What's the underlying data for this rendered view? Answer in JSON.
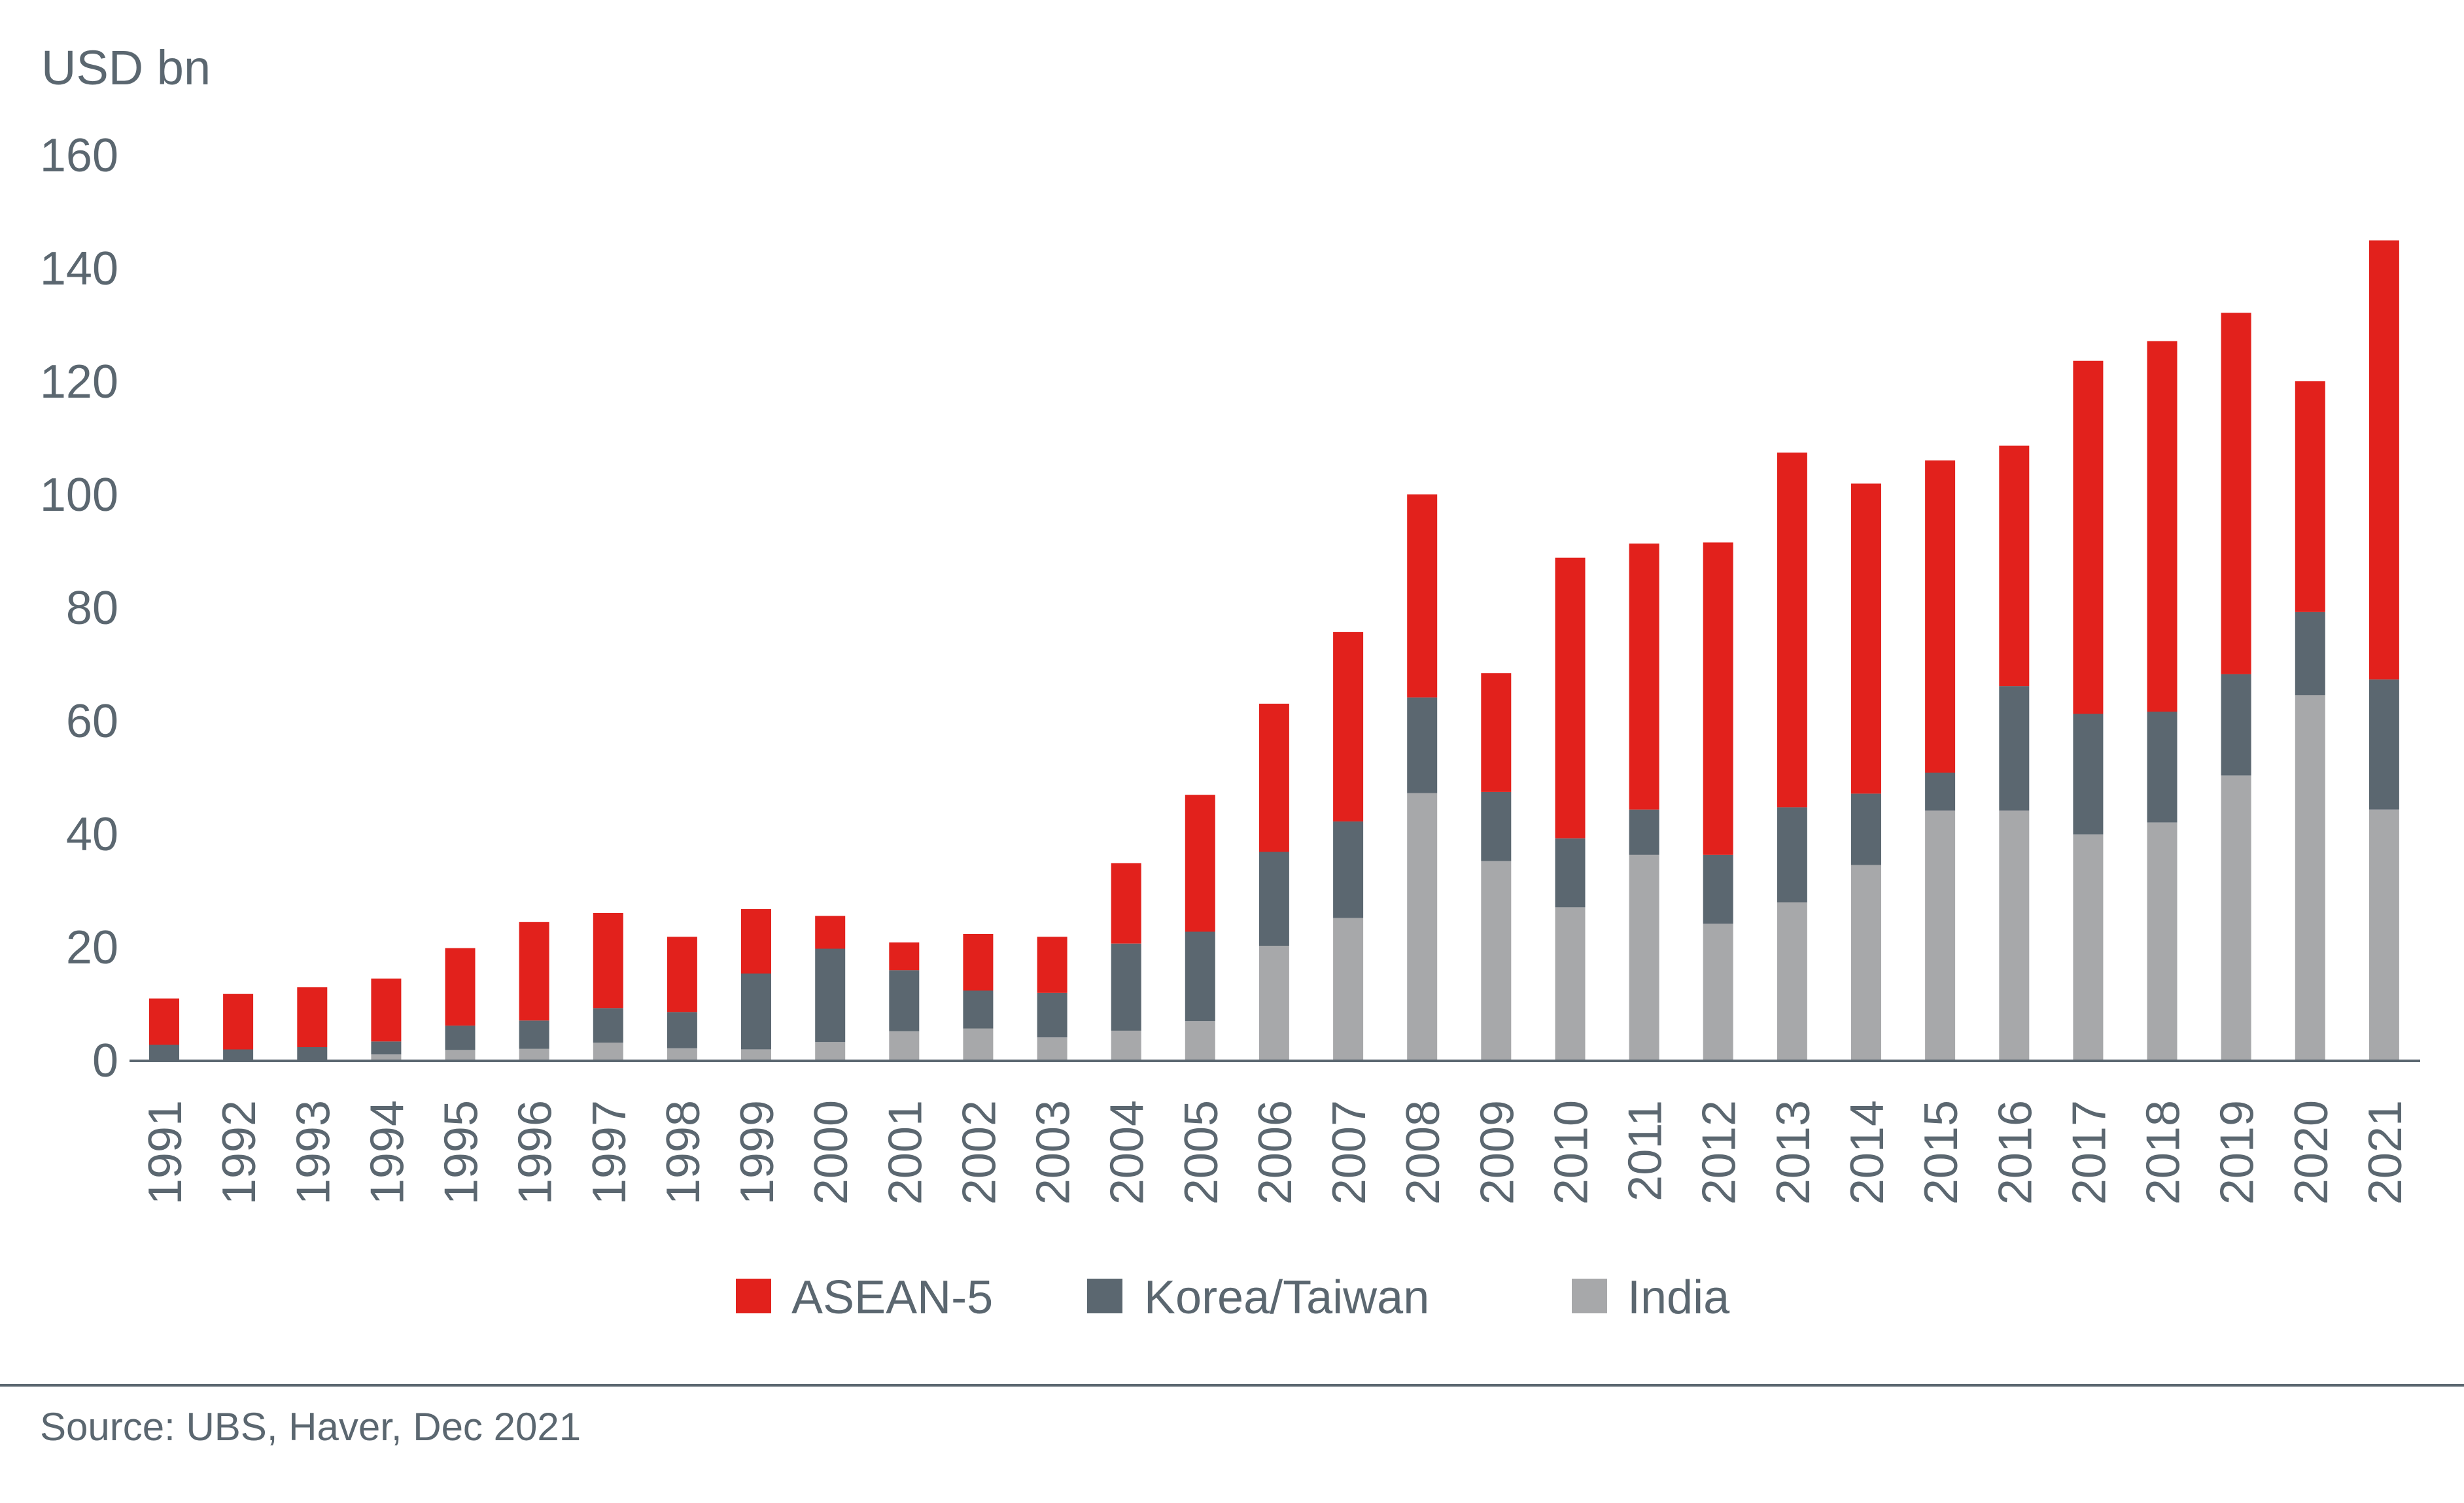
{
  "chart_data": {
    "type": "bar",
    "stacked": true,
    "title": "",
    "ylabel": "USD bn",
    "xlabel": "",
    "ylim": [
      0,
      160
    ],
    "yticks": [
      0,
      20,
      40,
      60,
      80,
      100,
      120,
      140,
      160
    ],
    "grid": false,
    "legend_position": "bottom",
    "categories": [
      "1991",
      "1992",
      "1993",
      "1994",
      "1995",
      "1996",
      "1997",
      "1998",
      "1999",
      "2000",
      "2001",
      "2002",
      "2003",
      "2004",
      "2005",
      "2006",
      "2007",
      "2008",
      "2009",
      "2010",
      "2011",
      "2012",
      "2013",
      "2014",
      "2015",
      "2016",
      "2017",
      "2018",
      "2019",
      "2020",
      "2021"
    ],
    "series": [
      {
        "name": "India",
        "color": "#a7a8aa",
        "values": [
          0,
          0,
          0,
          0.9,
          1.7,
          1.9,
          3.0,
          2.0,
          1.8,
          3.1,
          5.0,
          5.5,
          3.9,
          5.1,
          6.8,
          20.1,
          25.0,
          47.1,
          35.1,
          26.9,
          36.2,
          24.0,
          27.8,
          34.4,
          44.0,
          44.0,
          39.8,
          41.9,
          50.2,
          64.4,
          44.2
        ]
      },
      {
        "name": "Korea/Taiwan",
        "color": "#5b6770",
        "values": [
          2.6,
          1.8,
          2.2,
          2.3,
          4.3,
          5.0,
          6.1,
          6.4,
          13.4,
          16.5,
          10.8,
          6.7,
          7.9,
          15.4,
          15.8,
          16.6,
          17.1,
          16.9,
          12.2,
          12.2,
          8.0,
          12.2,
          16.8,
          12.6,
          6.7,
          22.0,
          21.3,
          19.6,
          17.9,
          14.7,
          23.0
        ]
      },
      {
        "name": "ASEAN-5",
        "color": "#e2211c",
        "values": [
          8.2,
          9.8,
          10.6,
          11.1,
          13.7,
          17.4,
          16.8,
          13.3,
          11.4,
          5.8,
          4.9,
          10.0,
          9.9,
          14.2,
          24.2,
          26.2,
          33.5,
          35.9,
          21.0,
          49.6,
          47.0,
          55.2,
          62.7,
          54.8,
          55.2,
          42.5,
          62.4,
          65.5,
          63.9,
          40.8,
          77.6
        ]
      }
    ]
  },
  "legend": {
    "items": [
      {
        "label": "ASEAN-5",
        "color": "#e2211c"
      },
      {
        "label": "Korea/Taiwan",
        "color": "#5b6770"
      },
      {
        "label": "India",
        "color": "#a7a8aa"
      }
    ]
  },
  "source": "Source: UBS, Haver, Dec 2021",
  "colors": {
    "text": "#5b6770",
    "axis": "#5b6770",
    "separator": "#5b6770"
  }
}
